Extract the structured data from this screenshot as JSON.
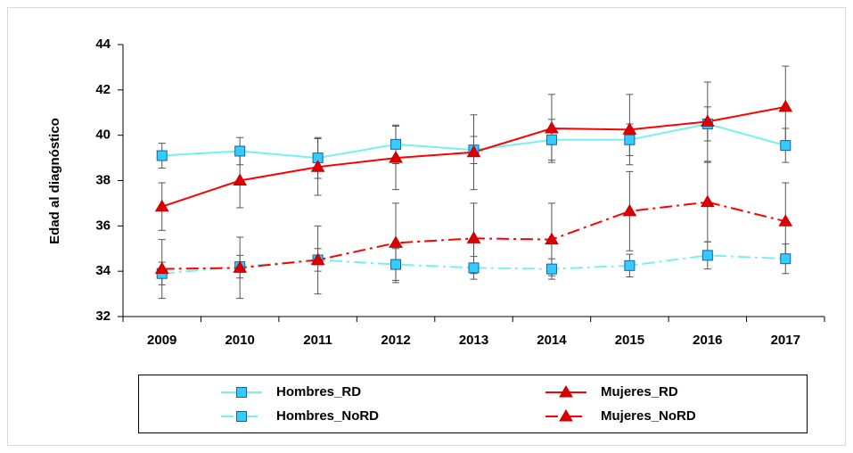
{
  "chart_data": {
    "type": "line",
    "y_label": "Edad al diagnóstico",
    "categories": [
      "2009",
      "2010",
      "2011",
      "2012",
      "2013",
      "2014",
      "2015",
      "2016",
      "2017"
    ],
    "ylim": [
      32,
      44
    ],
    "yticks": [
      32,
      34,
      36,
      38,
      40,
      42,
      44
    ],
    "series": [
      {
        "name": "Hombres_RD",
        "color": "#77f0f0",
        "marker_color": "#33ccff",
        "marker": "square",
        "linestyle": "solid",
        "values": [
          39.1,
          39.3,
          39.0,
          39.6,
          39.35,
          39.8,
          39.8,
          40.5,
          39.55
        ],
        "errors": [
          0.55,
          0.6,
          0.9,
          0.85,
          0.6,
          0.9,
          0.7,
          0.75,
          0.75
        ]
      },
      {
        "name": "Mujeres_RD",
        "color": "#ff0000",
        "marker_color": "#dd0000",
        "marker": "triangle",
        "linestyle": "solid",
        "values": [
          36.85,
          38.0,
          38.6,
          39.0,
          39.25,
          40.3,
          40.25,
          40.6,
          41.25
        ],
        "errors": [
          1.05,
          1.2,
          1.25,
          1.4,
          1.65,
          1.5,
          1.55,
          1.75,
          1.8
        ]
      },
      {
        "name": "Hombres_NoRD",
        "color": "#77f0f0",
        "marker_color": "#33ccff",
        "marker": "square",
        "linestyle": "dashdot",
        "values": [
          33.9,
          34.2,
          34.5,
          34.3,
          34.15,
          34.1,
          34.25,
          34.7,
          34.55
        ],
        "errors": [
          0.5,
          0.5,
          0.5,
          0.7,
          0.5,
          0.45,
          0.5,
          0.6,
          0.65
        ]
      },
      {
        "name": "Mujeres_NoRD",
        "color": "#ff0000",
        "marker_color": "#dd0000",
        "marker": "triangle",
        "linestyle": "dashdot",
        "values": [
          34.1,
          34.15,
          34.5,
          35.25,
          35.45,
          35.4,
          36.65,
          37.05,
          36.2
        ],
        "errors": [
          1.3,
          1.35,
          1.5,
          1.75,
          1.55,
          1.6,
          1.75,
          1.75,
          1.7
        ]
      }
    ]
  }
}
